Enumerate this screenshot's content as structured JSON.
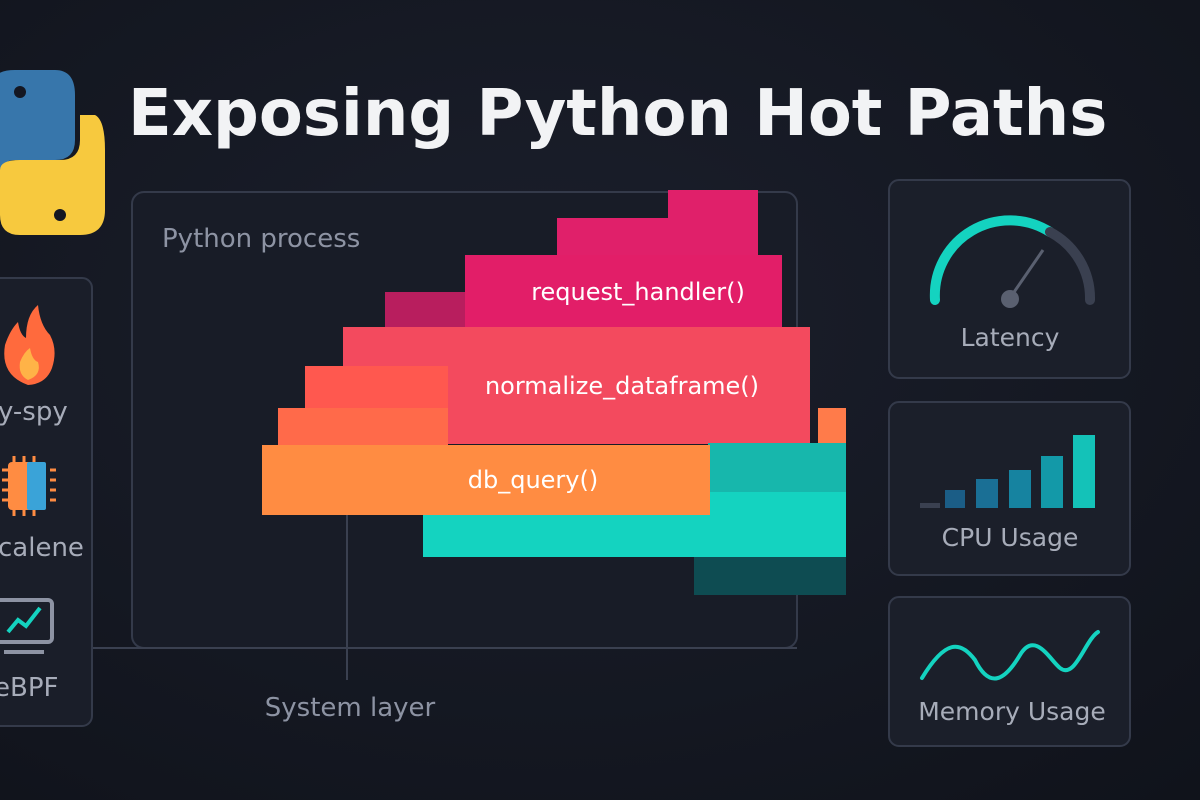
{
  "header": {
    "title": "Exposing Python Hot Paths"
  },
  "process": {
    "label": "Python process",
    "frames": [
      "request_handler()",
      "normalize_dataframe()",
      "db_query()"
    ]
  },
  "tools": [
    "y-spy",
    "calene",
    "eBPF"
  ],
  "system_layer": "System layer",
  "metrics": [
    "Latency",
    "CPU Usage",
    "Memory Usage"
  ]
}
